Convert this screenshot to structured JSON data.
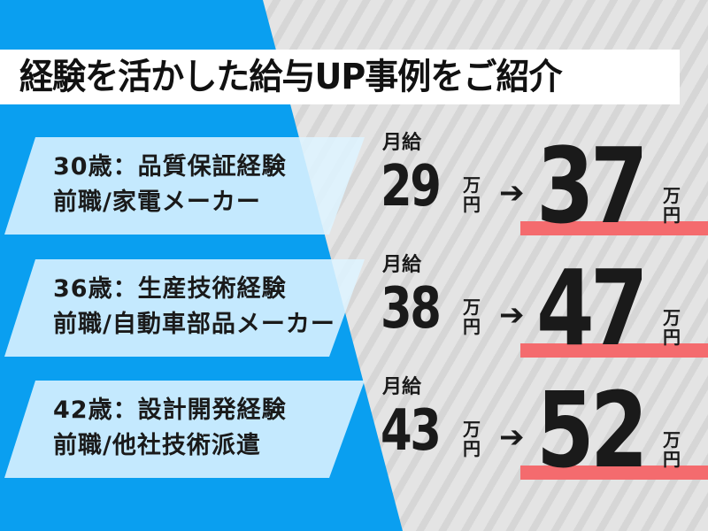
{
  "title": "経験を活かした給与UP事例をご紹介",
  "colors": {
    "blue": "#0a9ff0",
    "card": "#def4ff",
    "accent_bar": "#f46b6e",
    "text": "#1a1a1a"
  },
  "salary_label": "月給",
  "unit_top": "万",
  "unit_bottom": "円",
  "arrow": "➔",
  "cases": [
    {
      "line1": "30歳：品質保証経験",
      "line2": "前職/家電メーカー",
      "before": "29",
      "after": "37"
    },
    {
      "line1": "36歳：生産技術経験",
      "line2": "前職/自動車部品メーカー",
      "before": "38",
      "after": "47"
    },
    {
      "line1": "42歳：設計開発経験",
      "line2": "前職/他社技術派遣",
      "before": "43",
      "after": "52"
    }
  ]
}
